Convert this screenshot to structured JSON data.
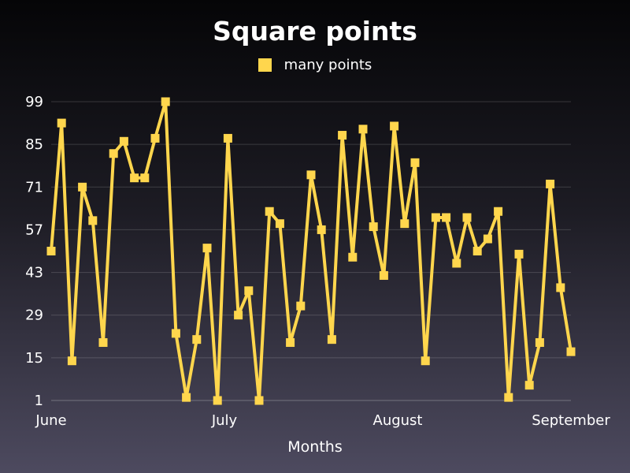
{
  "chart_data": {
    "type": "line",
    "title": "Square points",
    "xlabel": "Months",
    "ylabel": "",
    "x_ticks": [
      "June",
      "July",
      "August",
      "September"
    ],
    "y_ticks": [
      1,
      15,
      29,
      43,
      57,
      71,
      85,
      99
    ],
    "ylim": [
      1,
      99
    ],
    "grid": true,
    "legend_position": "top-center",
    "series": [
      {
        "name": "many points",
        "color": "#ffd64d",
        "marker": "square",
        "values": [
          50,
          92,
          14,
          71,
          60,
          20,
          82,
          86,
          74,
          74,
          87,
          99,
          23,
          2,
          21,
          51,
          1,
          87,
          29,
          37,
          1,
          63,
          59,
          20,
          32,
          75,
          57,
          21,
          88,
          48,
          90,
          58,
          42,
          91,
          59,
          79,
          14,
          61,
          61,
          46,
          61,
          50,
          54,
          63,
          2,
          49,
          6,
          20,
          72,
          38,
          17
        ]
      }
    ]
  }
}
